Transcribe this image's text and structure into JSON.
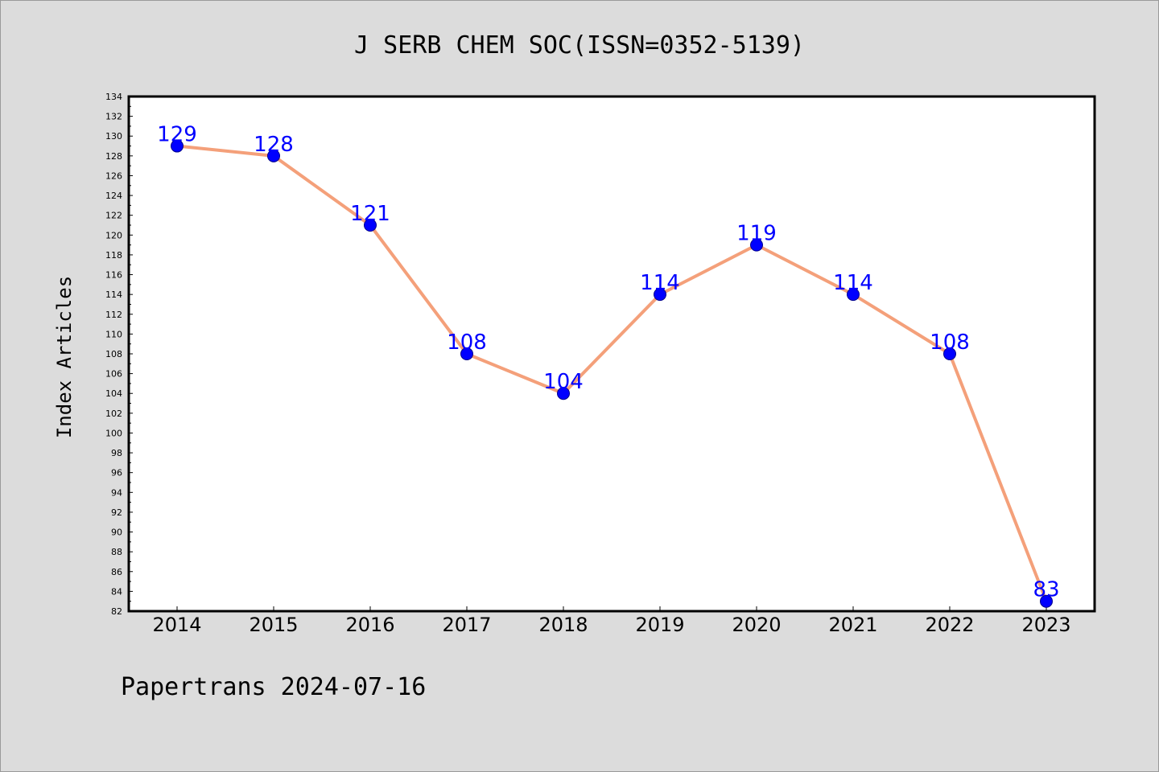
{
  "chart_data": {
    "type": "line",
    "title": "J SERB CHEM SOC(ISSN=0352-5139)",
    "xlabel": "",
    "ylabel": "Index Articles",
    "x": [
      "2014",
      "2015",
      "2016",
      "2017",
      "2018",
      "2019",
      "2020",
      "2021",
      "2022",
      "2023"
    ],
    "series": [
      {
        "values": [
          129,
          128,
          121,
          108,
          104,
          114,
          119,
          114,
          108,
          83
        ]
      }
    ],
    "ylim": [
      82,
      134
    ],
    "ytick_step": 2,
    "yticks": [
      "82",
      "84",
      "86",
      "88",
      "90",
      "92",
      "94",
      "96",
      "98",
      "100",
      "102",
      "104",
      "106",
      "108",
      "110",
      "112",
      "114",
      "116",
      "118",
      "120",
      "122",
      "124",
      "126",
      "128",
      "130",
      "132",
      "134"
    ],
    "data_labels": [
      "129",
      "128",
      "121",
      "108",
      "104",
      "114",
      "119",
      "114",
      "108",
      "83"
    ],
    "grid": false,
    "legend": "none",
    "footer": "Papertrans 2024-07-16",
    "colors": {
      "line": "#f4a07a",
      "marker": "#0000ff",
      "marker_edge": "#00008b",
      "data_label": "#0000ff",
      "plot_background": "#ffffff",
      "page_background": "#dcdcdc"
    }
  }
}
